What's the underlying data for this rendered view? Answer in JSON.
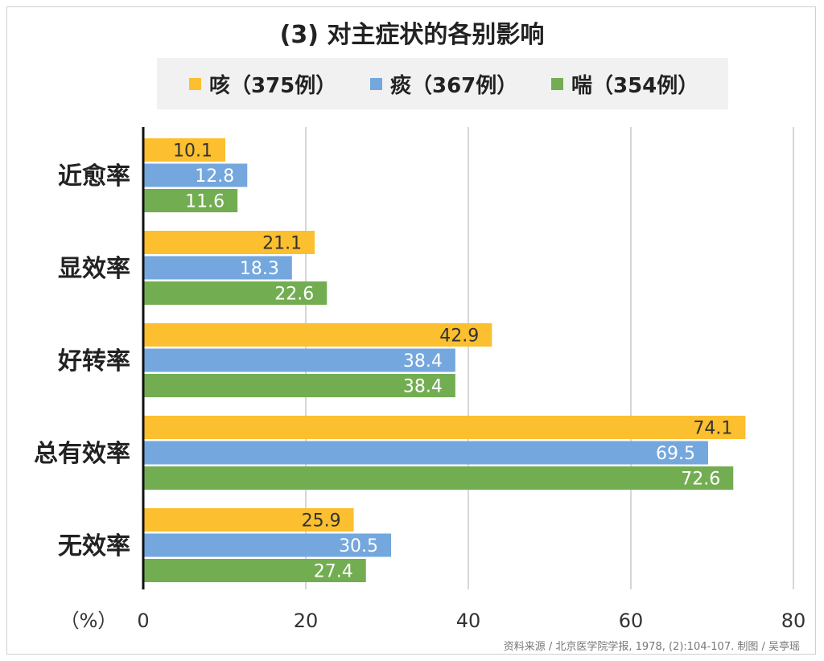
{
  "title": "(3) 对主症状的各别影响",
  "source_note": "资料来源 / 北京医学院学报, 1978, (2):104-107.      制图 / 吴亭瑶",
  "chart_data": {
    "type": "bar",
    "orientation": "horizontal",
    "title": "(3) 对主症状的各别影响",
    "categories": [
      "近愈率",
      "显效率",
      "好转率",
      "总有效率",
      "无效率"
    ],
    "series": [
      {
        "name": "咳（375例）",
        "color": "#fbbf2f",
        "label_color": "#333333",
        "values": [
          10.1,
          21.1,
          42.9,
          74.1,
          25.9
        ]
      },
      {
        "name": "痰（367例）",
        "color": "#74a7dd",
        "label_color": "#ffffff",
        "values": [
          12.8,
          18.3,
          38.4,
          69.5,
          30.5
        ]
      },
      {
        "name": "喘（354例）",
        "color": "#73ad52",
        "label_color": "#ffffff",
        "values": [
          11.6,
          22.6,
          38.4,
          72.6,
          27.4
        ]
      }
    ],
    "xlabel": "（%）",
    "xlim": [
      0,
      80
    ],
    "xticks": [
      "0",
      "20",
      "40",
      "60",
      "80"
    ],
    "grid": true,
    "legend_position": "top"
  }
}
